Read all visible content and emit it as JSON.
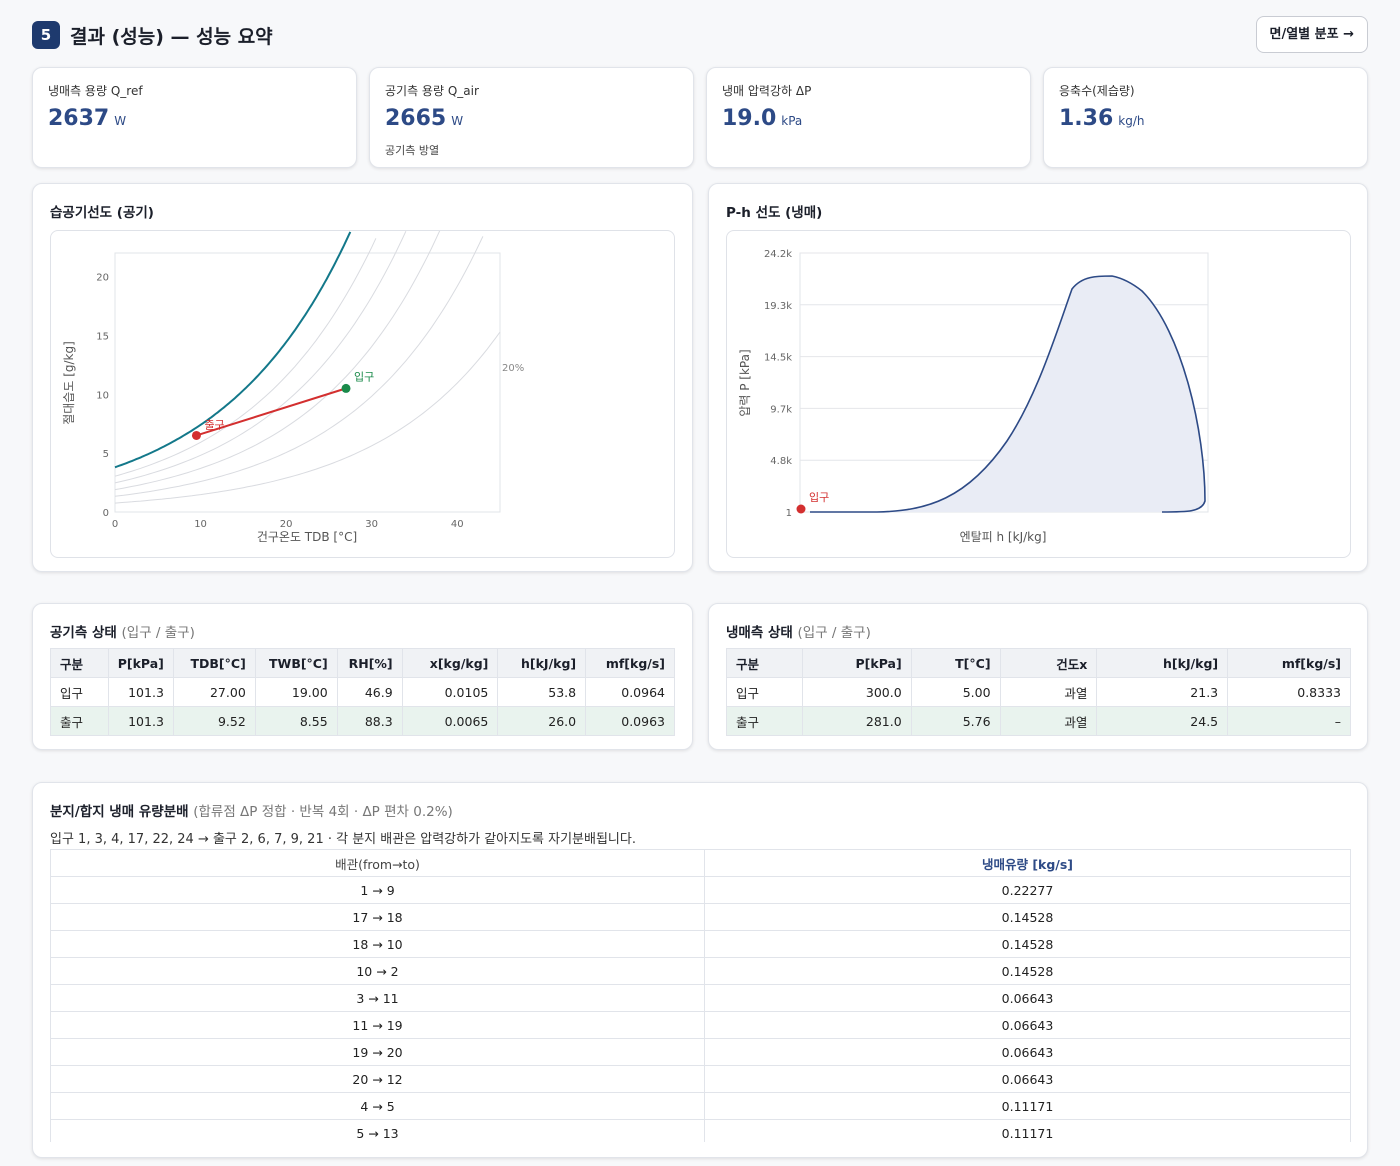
{
  "header": {
    "step": "5",
    "title": "결과 (성능) — 성능 요약",
    "next_button": "면/열별 분포 →"
  },
  "kpis": [
    {
      "label": "냉매측 용량 Q_ref",
      "value": "2637",
      "unit": "W",
      "sub": ""
    },
    {
      "label": "공기측 용량 Q_air",
      "value": "2665",
      "unit": "W",
      "sub": "공기측 방열"
    },
    {
      "label": "냉매 압력강하 ΔP",
      "value": "19.0",
      "unit": "kPa",
      "sub": ""
    },
    {
      "label": "응축수(제습량)",
      "value": "1.36",
      "unit": "kg/h",
      "sub": ""
    }
  ],
  "psy_chart": {
    "title": "습공기선도 (공기)",
    "xlabel": "건구온도 TDB [°C]",
    "ylabel": "절대습도 [g/kg]",
    "x_ticks": [
      "0",
      "10",
      "20",
      "30",
      "40"
    ],
    "y_ticks": [
      "0",
      "5",
      "10",
      "15",
      "20"
    ],
    "rh_label": "20%",
    "inlet_label": "입구",
    "outlet_label": "출구"
  },
  "ph_chart": {
    "title": "P-h 선도 (냉매)",
    "xlabel": "엔탈피 h [kJ/kg]",
    "ylabel": "압력 P [kPa]",
    "y_ticks": [
      "1",
      "4.8k",
      "9.7k",
      "14.5k",
      "19.3k",
      "24.2k"
    ],
    "point_label": "입구"
  },
  "chart_data": [
    {
      "type": "line",
      "title": "습공기선도 (공기)",
      "xlabel": "건구온도 TDB [°C]",
      "ylabel": "절대습도 [g/kg]",
      "xlim": [
        0,
        45
      ],
      "ylim": [
        0,
        22
      ],
      "grid": false,
      "series": [
        {
          "x": [
            0,
            5,
            10,
            15,
            20,
            25
          ],
          "y": [
            3.8,
            5.4,
            7.6,
            10.7,
            14.7,
            20.0
          ]
        },
        {
          "name": "20%",
          "x": [
            0,
            10,
            20,
            30,
            45
          ],
          "y": [
            0.8,
            1.5,
            3.0,
            5.5,
            12.5
          ]
        },
        {
          "x": [
            9.52,
            27.0
          ],
          "y": [
            6.5,
            10.5
          ]
        }
      ],
      "points": [
        {
          "label": "입구",
          "x": 27.0,
          "y": 10.5
        },
        {
          "label": "출구",
          "x": 9.52,
          "y": 6.5
        }
      ]
    },
    {
      "type": "area",
      "title": "P-h 선도 (냉매)",
      "xlabel": "엔탈피 h [kJ/kg]",
      "ylabel": "압력 P [kPa]",
      "ylim": [
        1,
        24200
      ],
      "y_ticks": [
        "1",
        "4.8k",
        "9.7k",
        "14.5k",
        "19.3k",
        "24.2k"
      ],
      "points": [
        {
          "label": "입구"
        }
      ]
    }
  ],
  "air_state": {
    "title": "공기측 상태",
    "subtitle": "(입구 / 출구)",
    "headers": [
      "구분",
      "P[kPa]",
      "TDB[°C]",
      "TWB[°C]",
      "RH[%]",
      "x[kg/kg]",
      "h[kJ/kg]",
      "mf[kg/s]"
    ],
    "rows": [
      [
        "입구",
        "101.3",
        "27.00",
        "19.00",
        "46.9",
        "0.0105",
        "53.8",
        "0.0964"
      ],
      [
        "출구",
        "101.3",
        "9.52",
        "8.55",
        "88.3",
        "0.0065",
        "26.0",
        "0.0963"
      ]
    ]
  },
  "ref_state": {
    "title": "냉매측 상태",
    "subtitle": "(입구 / 출구)",
    "headers": [
      "구분",
      "P[kPa]",
      "T[°C]",
      "건도x",
      "h[kJ/kg]",
      "mf[kg/s]"
    ],
    "rows": [
      [
        "입구",
        "300.0",
        "5.00",
        "과열",
        "21.3",
        "0.8333"
      ],
      [
        "출구",
        "281.0",
        "5.76",
        "과열",
        "24.5",
        "–"
      ]
    ]
  },
  "branch": {
    "title": "분지/합지 냉매 유량분배",
    "subtitle": "(합류점 ΔP 정합 · 반복 4회 · ΔP 편차 0.2%)",
    "note": "입구 1, 3, 4, 17, 22, 24 → 출구 2, 6, 7, 9, 21 · 각 분지 배관은 압력강하가 같아지도록 자기분배됩니다.",
    "headers": [
      "배관(from→to)",
      "냉매유량 [kg/s]"
    ],
    "rows": [
      [
        "1 → 9",
        "0.22277"
      ],
      [
        "17 → 18",
        "0.14528"
      ],
      [
        "18 → 10",
        "0.14528"
      ],
      [
        "10 → 2",
        "0.14528"
      ],
      [
        "3 → 11",
        "0.06643"
      ],
      [
        "11 → 19",
        "0.06643"
      ],
      [
        "19 → 20",
        "0.06643"
      ],
      [
        "20 → 12",
        "0.06643"
      ],
      [
        "4 → 5",
        "0.11171"
      ],
      [
        "5 → 13",
        "0.11171"
      ]
    ]
  }
}
